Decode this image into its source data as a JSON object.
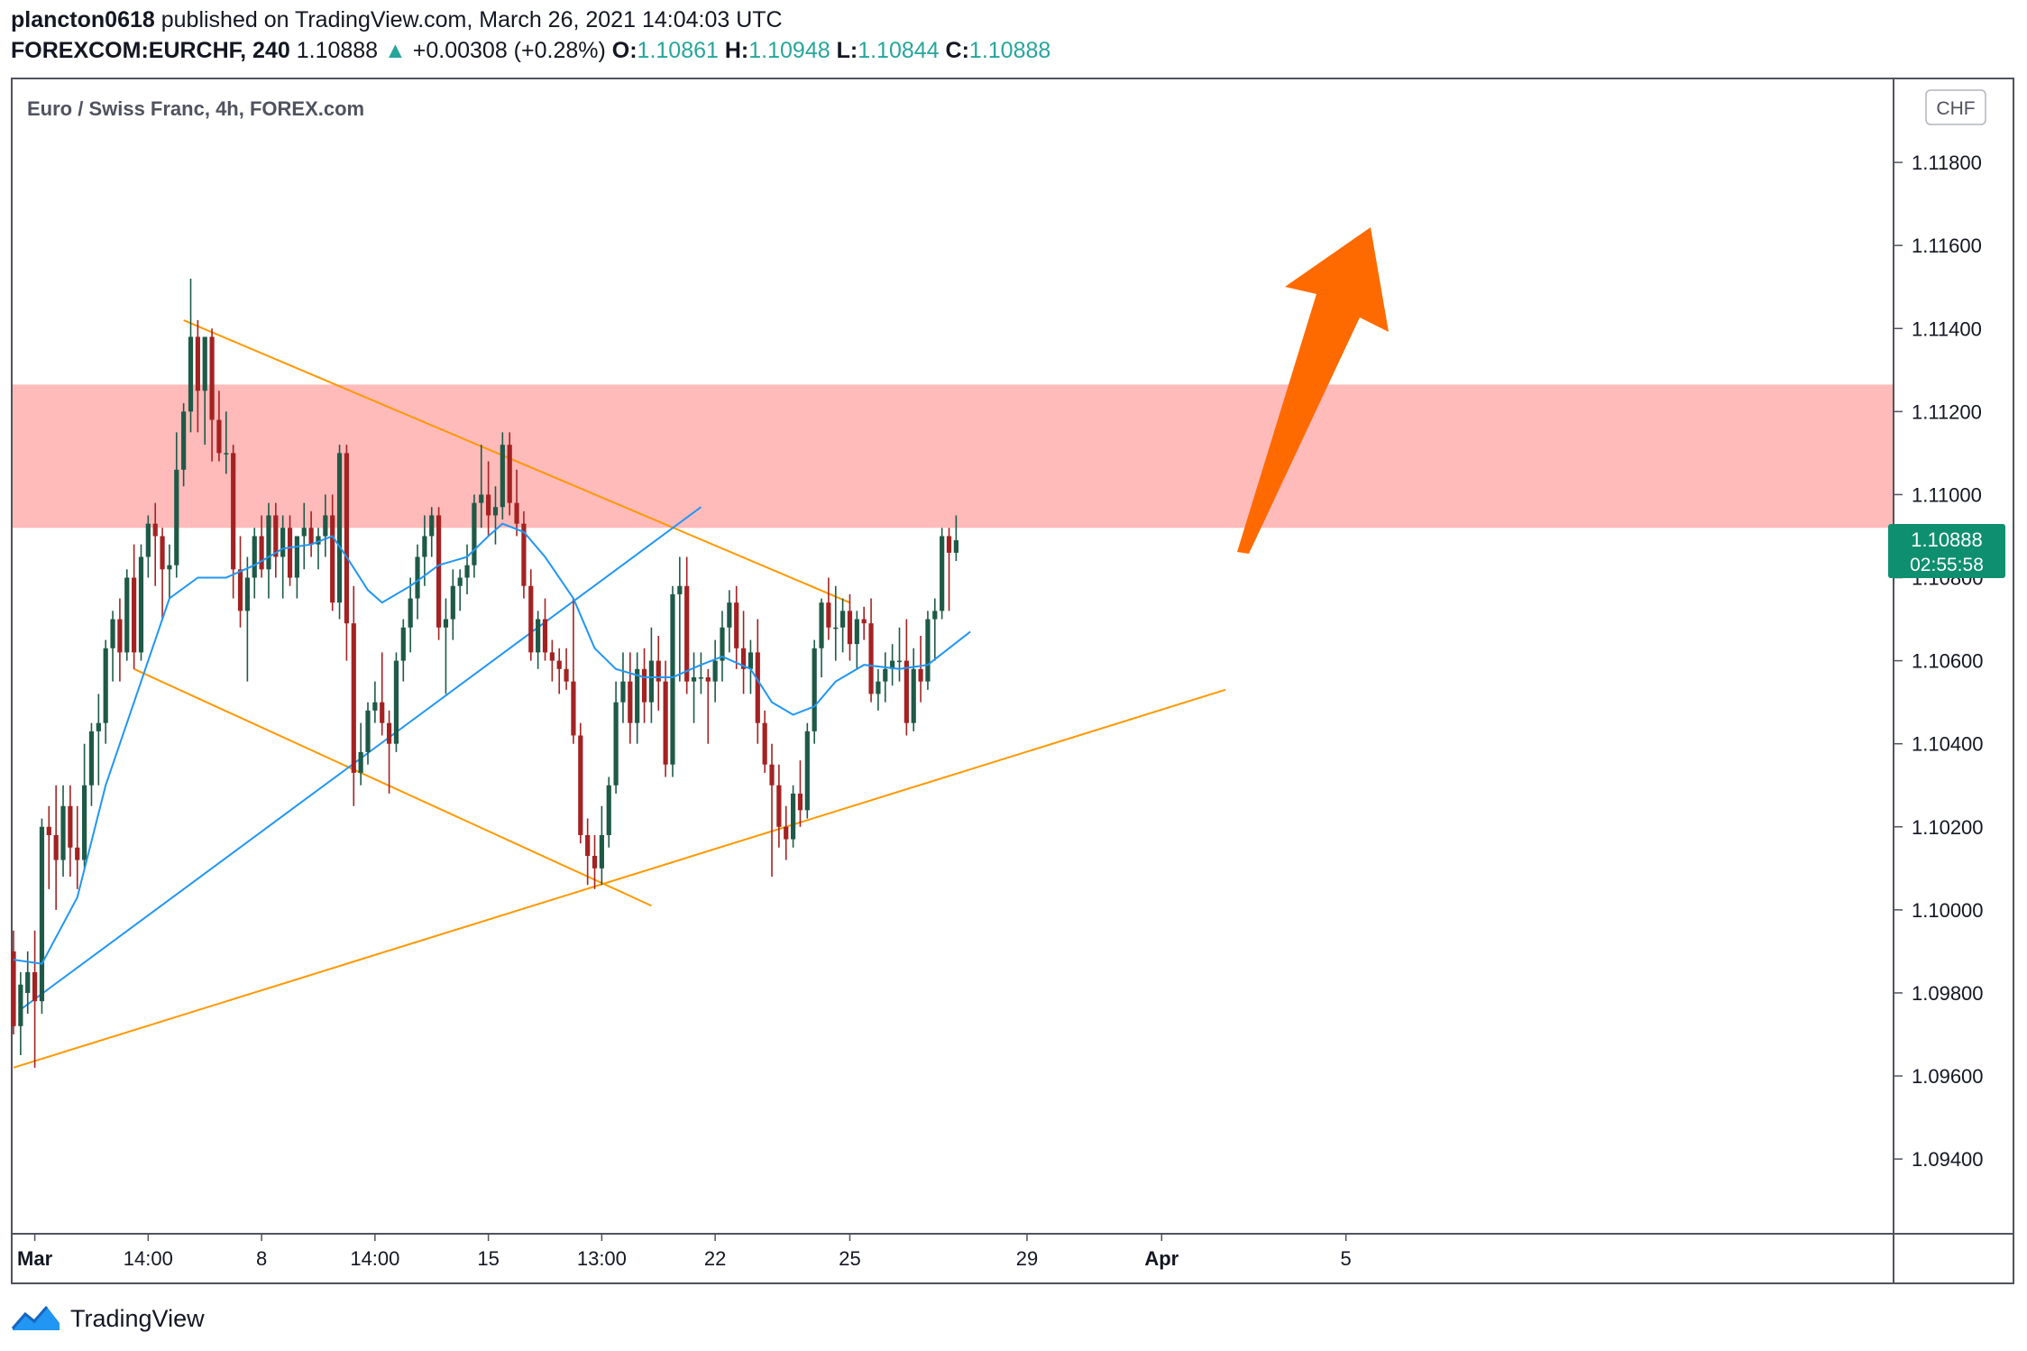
{
  "header": {
    "author": "plancton0618",
    "published_text": "published on TradingView.com, March 26, 2021 14:04:03 UTC",
    "symbol": "FOREXCOM:EURCHF, 240",
    "last": "1.10888",
    "change_arrow": "▲",
    "change": "+0.00308 (+0.28%)",
    "o_label": "O:",
    "o_value": "1.10861",
    "h_label": "H:",
    "h_value": "1.10948",
    "l_label": "L:",
    "l_value": "1.10844",
    "c_label": "C:",
    "c_value": "1.10888"
  },
  "footer": {
    "brand": "TradingView",
    "logo_icon": "tradingview-logo-icon"
  },
  "colors": {
    "up": "#1e5a47",
    "down": "#a42222",
    "ma": "#2196f3",
    "triangle": "#ff9800",
    "zone": "#ffb3b3",
    "arrow": "#ff6a00",
    "price_tag": "#0e8f6f"
  },
  "chart_data": {
    "type": "candlestick",
    "title": "Euro / Swiss Franc, 4h, FOREX.com",
    "currency": "CHF",
    "ylim": [
      1.0922,
      1.12
    ],
    "yticks": [
      "1.11800",
      "1.11600",
      "1.11400",
      "1.11200",
      "1.11000",
      "1.10800",
      "1.10600",
      "1.10400",
      "1.10200",
      "1.10000",
      "1.09800",
      "1.09600",
      "1.09400"
    ],
    "x_tick_labels": [
      {
        "label": "Mar",
        "bar": 3,
        "bold": true
      },
      {
        "label": "14:00",
        "bar": 19
      },
      {
        "label": "8",
        "bar": 35
      },
      {
        "label": "14:00",
        "bar": 51
      },
      {
        "label": "15",
        "bar": 67
      },
      {
        "label": "13:00",
        "bar": 83
      },
      {
        "label": "22",
        "bar": 99
      },
      {
        "label": "25",
        "bar": 118
      },
      {
        "label": "29",
        "bar": 143
      },
      {
        "label": "Apr",
        "bar": 162,
        "bold": true
      },
      {
        "label": "5",
        "bar": 188
      }
    ],
    "current_price": {
      "value": 1.10888,
      "label": "1.10888",
      "countdown": "02:55:58"
    },
    "resistance_zone": [
      1.1092,
      1.11265
    ],
    "ohlc": [
      [
        1.099,
        1.0995,
        1.097,
        1.0972
      ],
      [
        1.0972,
        1.0985,
        1.0965,
        1.0982
      ],
      [
        1.098,
        1.099,
        1.0975,
        1.0985
      ],
      [
        1.0985,
        1.0995,
        1.0962,
        1.0978
      ],
      [
        1.0978,
        1.1022,
        1.0975,
        1.102
      ],
      [
        1.102,
        1.1025,
        1.1005,
        1.1018
      ],
      [
        1.1018,
        1.103,
        1.1,
        1.1012
      ],
      [
        1.1012,
        1.103,
        1.1008,
        1.1025
      ],
      [
        1.1025,
        1.103,
        1.1008,
        1.1015
      ],
      [
        1.1015,
        1.1025,
        1.1005,
        1.1012
      ],
      [
        1.1012,
        1.104,
        1.101,
        1.103
      ],
      [
        1.103,
        1.1045,
        1.1025,
        1.1043
      ],
      [
        1.1043,
        1.1052,
        1.103,
        1.1045
      ],
      [
        1.1045,
        1.1065,
        1.104,
        1.1063
      ],
      [
        1.1063,
        1.1072,
        1.1055,
        1.107
      ],
      [
        1.107,
        1.1075,
        1.1055,
        1.1062
      ],
      [
        1.1062,
        1.1082,
        1.106,
        1.108
      ],
      [
        1.108,
        1.1088,
        1.1058,
        1.1062
      ],
      [
        1.1062,
        1.1088,
        1.106,
        1.1085
      ],
      [
        1.1085,
        1.1095,
        1.108,
        1.1093
      ],
      [
        1.1093,
        1.1098,
        1.1078,
        1.109
      ],
      [
        1.109,
        1.1092,
        1.107,
        1.1082
      ],
      [
        1.1082,
        1.1088,
        1.1075,
        1.1083
      ],
      [
        1.1083,
        1.1115,
        1.108,
        1.1106
      ],
      [
        1.1106,
        1.1122,
        1.1102,
        1.112
      ],
      [
        1.112,
        1.1152,
        1.1115,
        1.1138
      ],
      [
        1.1138,
        1.1142,
        1.1115,
        1.1125
      ],
      [
        1.1125,
        1.1138,
        1.1112,
        1.1138
      ],
      [
        1.1138,
        1.114,
        1.1108,
        1.1118
      ],
      [
        1.1118,
        1.1125,
        1.1108,
        1.111
      ],
      [
        1.111,
        1.112,
        1.1105,
        1.111
      ],
      [
        1.111,
        1.1112,
        1.1075,
        1.1082
      ],
      [
        1.1082,
        1.109,
        1.1068,
        1.1072
      ],
      [
        1.1072,
        1.1085,
        1.1055,
        1.108
      ],
      [
        1.108,
        1.1092,
        1.1075,
        1.109
      ],
      [
        1.109,
        1.1095,
        1.108,
        1.1082
      ],
      [
        1.1082,
        1.1098,
        1.1075,
        1.1095
      ],
      [
        1.1095,
        1.1098,
        1.108,
        1.1085
      ],
      [
        1.1085,
        1.1095,
        1.1075,
        1.1092
      ],
      [
        1.1092,
        1.1095,
        1.1078,
        1.108
      ],
      [
        1.108,
        1.109,
        1.1075,
        1.109
      ],
      [
        1.109,
        1.1098,
        1.1082,
        1.1092
      ],
      [
        1.1092,
        1.1096,
        1.1085,
        1.1088
      ],
      [
        1.1088,
        1.1092,
        1.1082,
        1.109
      ],
      [
        1.109,
        1.11,
        1.1085,
        1.1095
      ],
      [
        1.1095,
        1.11,
        1.1072,
        1.1074
      ],
      [
        1.1074,
        1.1112,
        1.107,
        1.111
      ],
      [
        1.111,
        1.1112,
        1.106,
        1.1069
      ],
      [
        1.1069,
        1.1078,
        1.1025,
        1.1033
      ],
      [
        1.1033,
        1.1045,
        1.103,
        1.1038
      ],
      [
        1.1038,
        1.105,
        1.1035,
        1.1048
      ],
      [
        1.1048,
        1.1055,
        1.1045,
        1.105
      ],
      [
        1.105,
        1.1062,
        1.1042,
        1.1045
      ],
      [
        1.1045,
        1.1048,
        1.1028,
        1.104
      ],
      [
        1.104,
        1.1062,
        1.1038,
        1.106
      ],
      [
        1.106,
        1.107,
        1.1055,
        1.1068
      ],
      [
        1.1068,
        1.108,
        1.1062,
        1.1075
      ],
      [
        1.1075,
        1.1088,
        1.107,
        1.1085
      ],
      [
        1.1085,
        1.1095,
        1.1078,
        1.109
      ],
      [
        1.109,
        1.1097,
        1.1085,
        1.1095
      ],
      [
        1.1095,
        1.1097,
        1.1065,
        1.1068
      ],
      [
        1.1068,
        1.1075,
        1.1052,
        1.107
      ],
      [
        1.107,
        1.1082,
        1.1065,
        1.1078
      ],
      [
        1.1078,
        1.1082,
        1.1072,
        1.108
      ],
      [
        1.108,
        1.1088,
        1.1076,
        1.1083
      ],
      [
        1.1083,
        1.11,
        1.108,
        1.1098
      ],
      [
        1.1098,
        1.1112,
        1.1092,
        1.11
      ],
      [
        1.11,
        1.1108,
        1.109,
        1.1095
      ],
      [
        1.1095,
        1.1102,
        1.1088,
        1.1097
      ],
      [
        1.1097,
        1.1115,
        1.1094,
        1.1112
      ],
      [
        1.1112,
        1.1115,
        1.1095,
        1.1098
      ],
      [
        1.1098,
        1.1106,
        1.109,
        1.1093
      ],
      [
        1.1093,
        1.1096,
        1.1075,
        1.1078
      ],
      [
        1.1078,
        1.1082,
        1.106,
        1.1062
      ],
      [
        1.1062,
        1.1072,
        1.1058,
        1.107
      ],
      [
        1.107,
        1.1075,
        1.106,
        1.1062
      ],
      [
        1.1062,
        1.1065,
        1.1055,
        1.106
      ],
      [
        1.106,
        1.1063,
        1.1052,
        1.1058
      ],
      [
        1.1058,
        1.1063,
        1.1053,
        1.1055
      ],
      [
        1.1055,
        1.1075,
        1.104,
        1.1042
      ],
      [
        1.1042,
        1.1045,
        1.1016,
        1.1018
      ],
      [
        1.1018,
        1.1022,
        1.1006,
        1.1013
      ],
      [
        1.1013,
        1.1018,
        1.1005,
        1.101
      ],
      [
        1.101,
        1.1025,
        1.1006,
        1.1018
      ],
      [
        1.1018,
        1.1032,
        1.1015,
        1.103
      ],
      [
        1.103,
        1.1055,
        1.1028,
        1.105
      ],
      [
        1.105,
        1.1062,
        1.1045,
        1.1055
      ],
      [
        1.1055,
        1.1062,
        1.104,
        1.1045
      ],
      [
        1.1045,
        1.1062,
        1.104,
        1.1058
      ],
      [
        1.1058,
        1.1063,
        1.1045,
        1.105
      ],
      [
        1.105,
        1.1068,
        1.1045,
        1.106
      ],
      [
        1.106,
        1.1066,
        1.1048,
        1.1055
      ],
      [
        1.1055,
        1.106,
        1.1032,
        1.1035
      ],
      [
        1.1035,
        1.1078,
        1.1032,
        1.1076
      ],
      [
        1.1076,
        1.1085,
        1.1055,
        1.1078
      ],
      [
        1.1078,
        1.1085,
        1.1052,
        1.1055
      ],
      [
        1.1055,
        1.1062,
        1.1045,
        1.1056
      ],
      [
        1.1056,
        1.1062,
        1.1052,
        1.1056
      ],
      [
        1.1056,
        1.1058,
        1.104,
        1.1055
      ],
      [
        1.1055,
        1.1065,
        1.105,
        1.106
      ],
      [
        1.106,
        1.1072,
        1.1055,
        1.1068
      ],
      [
        1.1068,
        1.1077,
        1.1062,
        1.1074
      ],
      [
        1.1074,
        1.1078,
        1.1058,
        1.1063
      ],
      [
        1.1063,
        1.1072,
        1.1052,
        1.1058
      ],
      [
        1.1058,
        1.1065,
        1.1052,
        1.1062
      ],
      [
        1.1062,
        1.107,
        1.104,
        1.1045
      ],
      [
        1.1045,
        1.1048,
        1.1033,
        1.1035
      ],
      [
        1.1035,
        1.104,
        1.1008,
        1.103
      ],
      [
        1.103,
        1.1035,
        1.1015,
        1.102
      ],
      [
        1.102,
        1.1025,
        1.1012,
        1.1017
      ],
      [
        1.1017,
        1.103,
        1.1015,
        1.1028
      ],
      [
        1.1028,
        1.1036,
        1.102,
        1.1024
      ],
      [
        1.1024,
        1.1045,
        1.1022,
        1.1043
      ],
      [
        1.1043,
        1.1065,
        1.104,
        1.1063
      ],
      [
        1.1063,
        1.1075,
        1.1056,
        1.1074
      ],
      [
        1.1074,
        1.108,
        1.1065,
        1.1068
      ],
      [
        1.1068,
        1.1078,
        1.106,
        1.1068
      ],
      [
        1.1068,
        1.1075,
        1.1062,
        1.1072
      ],
      [
        1.1072,
        1.1076,
        1.106,
        1.1064
      ],
      [
        1.1064,
        1.1072,
        1.1058,
        1.107
      ],
      [
        1.107,
        1.1073,
        1.1065,
        1.1069
      ],
      [
        1.1069,
        1.1075,
        1.105,
        1.1052
      ],
      [
        1.1052,
        1.1058,
        1.1048,
        1.1055
      ],
      [
        1.1055,
        1.1062,
        1.105,
        1.1058
      ],
      [
        1.1058,
        1.1064,
        1.1054,
        1.106
      ],
      [
        1.106,
        1.1068,
        1.1055,
        1.106
      ],
      [
        1.106,
        1.107,
        1.1042,
        1.1045
      ],
      [
        1.1045,
        1.1063,
        1.1043,
        1.1058
      ],
      [
        1.1058,
        1.1066,
        1.105,
        1.1055
      ],
      [
        1.1055,
        1.1072,
        1.1053,
        1.107
      ],
      [
        1.107,
        1.1075,
        1.106,
        1.1072
      ],
      [
        1.1072,
        1.1092,
        1.107,
        1.109
      ],
      [
        1.109,
        1.1092,
        1.1072,
        1.1086
      ],
      [
        1.1086,
        1.1095,
        1.1084,
        1.1089
      ]
    ],
    "ma_line": [
      [
        0,
        1.0988
      ],
      [
        4,
        1.0987
      ],
      [
        9,
        1.1003
      ],
      [
        13,
        1.103
      ],
      [
        18,
        1.1055
      ],
      [
        22,
        1.1075
      ],
      [
        26,
        1.108
      ],
      [
        30,
        1.108
      ],
      [
        34,
        1.1083
      ],
      [
        38,
        1.1087
      ],
      [
        42,
        1.1088
      ],
      [
        45,
        1.109
      ],
      [
        47,
        1.1085
      ],
      [
        50,
        1.1077
      ],
      [
        52,
        1.1074
      ],
      [
        56,
        1.1078
      ],
      [
        60,
        1.1083
      ],
      [
        64,
        1.1085
      ],
      [
        67,
        1.109
      ],
      [
        69,
        1.1093
      ],
      [
        72,
        1.1091
      ],
      [
        75,
        1.1085
      ],
      [
        79,
        1.1075
      ],
      [
        82,
        1.1063
      ],
      [
        85,
        1.1058
      ],
      [
        89,
        1.1056
      ],
      [
        93,
        1.1056
      ],
      [
        97,
        1.1059
      ],
      [
        100,
        1.1061
      ],
      [
        104,
        1.1058
      ],
      [
        107,
        1.105
      ],
      [
        110,
        1.1047
      ],
      [
        113,
        1.1049
      ],
      [
        116,
        1.1055
      ],
      [
        120,
        1.1059
      ],
      [
        125,
        1.1058
      ],
      [
        129,
        1.1059
      ],
      [
        132,
        1.1063
      ],
      [
        135,
        1.1067
      ]
    ],
    "upper_trendline": {
      "from": [
        24,
        1.1142
      ],
      "to": [
        118,
        1.1074
      ]
    },
    "lower_trendline": {
      "from": [
        0,
        1.0962
      ],
      "to": [
        171,
        1.1053
      ]
    },
    "descending_line": {
      "from": [
        17,
        1.1058
      ],
      "to": [
        90,
        1.1001
      ]
    },
    "blue_trendline": {
      "from": [
        1,
        1.0976
      ],
      "to": [
        97,
        1.1097
      ]
    }
  }
}
